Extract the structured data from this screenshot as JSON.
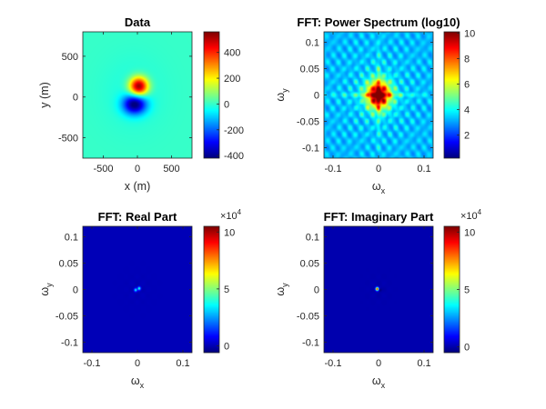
{
  "colormap": "jet",
  "colors": {
    "background": "#ffffff",
    "axis": "#262626",
    "jet_stops": [
      "#00008f",
      "#0000ff",
      "#00ffff",
      "#ffff00",
      "#ff0000",
      "#800000"
    ]
  },
  "chart_data": [
    {
      "type": "heatmap",
      "title": "Data",
      "xlabel": "x (m)",
      "ylabel": "y (m)",
      "xlim": [
        -800,
        800
      ],
      "ylim": [
        -750,
        800
      ],
      "xticks": [
        {
          "v": -500,
          "t": "-500"
        },
        {
          "v": 0,
          "t": "0"
        },
        {
          "v": 500,
          "t": "500"
        }
      ],
      "yticks": [
        {
          "v": 500,
          "t": "500"
        },
        {
          "v": 0,
          "t": "0"
        },
        {
          "v": -500,
          "t": "-500"
        }
      ],
      "clim": [
        -420,
        560
      ],
      "cticks": [
        {
          "v": 400,
          "t": "400"
        },
        {
          "v": 200,
          "t": "200"
        },
        {
          "v": 0,
          "t": "0"
        },
        {
          "v": -200,
          "t": "-200"
        },
        {
          "v": -400,
          "t": "-400"
        }
      ],
      "cexp": "",
      "field": {
        "kind": "dipole",
        "pos_center": [
          20,
          130
        ],
        "neg_center": [
          -40,
          -90
        ],
        "pos_peak": 560,
        "neg_peak": -420
      }
    },
    {
      "type": "heatmap",
      "title": "FFT: Power Spectrum (log10)",
      "xlabel": "ωx",
      "ylabel": "ωy",
      "xlim": [
        -0.12,
        0.12
      ],
      "ylim": [
        -0.12,
        0.12
      ],
      "xticks": [
        {
          "v": -0.1,
          "t": "-0.1"
        },
        {
          "v": 0,
          "t": "0"
        },
        {
          "v": 0.1,
          "t": "0.1"
        }
      ],
      "yticks": [
        {
          "v": 0.1,
          "t": "0.1"
        },
        {
          "v": 0.05,
          "t": "0.05"
        },
        {
          "v": 0,
          "t": "0"
        },
        {
          "v": -0.05,
          "t": "-0.05"
        },
        {
          "v": -0.1,
          "t": "-0.1"
        }
      ],
      "clim": [
        0.2,
        10.1
      ],
      "cticks": [
        {
          "v": 10,
          "t": "10"
        },
        {
          "v": 8,
          "t": "8"
        },
        {
          "v": 6,
          "t": "6"
        },
        {
          "v": 4,
          "t": "4"
        },
        {
          "v": 2,
          "t": "2"
        }
      ],
      "cexp": "",
      "field": {
        "kind": "log_spectrum",
        "peak": 10.1,
        "floor": 3.2,
        "ring_period": 0.0125
      }
    },
    {
      "type": "heatmap",
      "title": "FFT: Real Part",
      "xlabel": "ωx",
      "ylabel": "ωy",
      "xlim": [
        -0.12,
        0.12
      ],
      "ylim": [
        -0.12,
        0.12
      ],
      "xticks": [
        {
          "v": -0.1,
          "t": "-0.1"
        },
        {
          "v": 0,
          "t": "0"
        },
        {
          "v": 0.1,
          "t": "0.1"
        }
      ],
      "yticks": [
        {
          "v": 0.1,
          "t": "0.1"
        },
        {
          "v": 0.05,
          "t": "0.05"
        },
        {
          "v": 0,
          "t": "0"
        },
        {
          "v": -0.05,
          "t": "-0.05"
        },
        {
          "v": -0.1,
          "t": "-0.1"
        }
      ],
      "clim": [
        -0.6,
        10.5
      ],
      "cticks": [
        {
          "v": 10,
          "t": "10"
        },
        {
          "v": 5,
          "t": "5"
        },
        {
          "v": 0,
          "t": "0"
        }
      ],
      "cexp": "4",
      "field": {
        "kind": "spots",
        "spots": [
          {
            "x": 0.004,
            "y": 0.002,
            "a": 4.2
          },
          {
            "x": -0.004,
            "y": -0.001,
            "a": 3.6
          }
        ]
      }
    },
    {
      "type": "heatmap",
      "title": "FFT: Imaginary Part",
      "xlabel": "ωx",
      "ylabel": "ωy",
      "xlim": [
        -0.12,
        0.12
      ],
      "ylim": [
        -0.12,
        0.12
      ],
      "xticks": [
        {
          "v": -0.1,
          "t": "-0.1"
        },
        {
          "v": 0,
          "t": "0"
        },
        {
          "v": 0.1,
          "t": "0.1"
        }
      ],
      "yticks": [
        {
          "v": 0.1,
          "t": "0.1"
        },
        {
          "v": 0.05,
          "t": "0.05"
        },
        {
          "v": 0,
          "t": "0"
        },
        {
          "v": -0.05,
          "t": "-0.05"
        },
        {
          "v": -0.1,
          "t": "-0.1"
        }
      ],
      "clim": [
        -0.5,
        10.5
      ],
      "cticks": [
        {
          "v": 10,
          "t": "10"
        },
        {
          "v": 5,
          "t": "5"
        },
        {
          "v": 0,
          "t": "0"
        }
      ],
      "cexp": "4",
      "field": {
        "kind": "spots",
        "spots": [
          {
            "x": -0.003,
            "y": 0.001,
            "a": 9.6
          },
          {
            "x": 0.003,
            "y": -0.001,
            "a": -0.8
          }
        ]
      }
    }
  ]
}
